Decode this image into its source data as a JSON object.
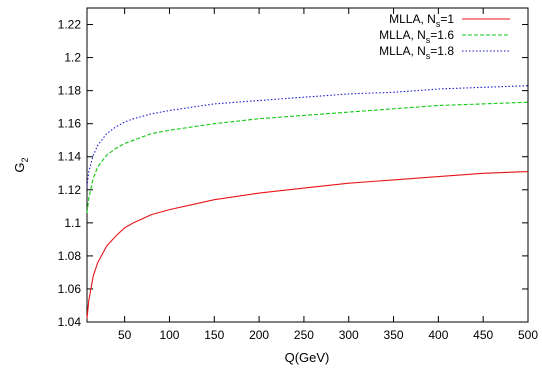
{
  "chart_data": {
    "type": "line",
    "xlabel": "Q(GeV)",
    "ylabel": "G",
    "ylabel_subscript": "2",
    "xlim": [
      8,
      500
    ],
    "ylim": [
      1.04,
      1.23
    ],
    "xticks": [
      50,
      100,
      150,
      200,
      250,
      300,
      350,
      400,
      450,
      500
    ],
    "yticks": [
      1.04,
      1.06,
      1.08,
      1.1,
      1.12,
      1.14,
      1.16,
      1.18,
      1.2,
      1.22
    ],
    "ytick_labels": [
      "1.04",
      "1.06",
      "1.08",
      "1.1",
      "1.12",
      "1.14",
      "1.16",
      "1.18",
      "1.2",
      "1.22"
    ],
    "grid": false,
    "legend_position": "top-right",
    "series": [
      {
        "name": "MLLA, N",
        "name_subscript": "s",
        "name_suffix": "=1",
        "color": "#e8161a",
        "dash": "solid",
        "x": [
          8,
          10,
          15,
          20,
          30,
          40,
          50,
          60,
          80,
          100,
          125,
          150,
          200,
          250,
          300,
          350,
          400,
          450,
          500
        ],
        "y": [
          1.042,
          1.053,
          1.068,
          1.076,
          1.086,
          1.092,
          1.097,
          1.1,
          1.105,
          1.108,
          1.111,
          1.114,
          1.118,
          1.121,
          1.124,
          1.126,
          1.128,
          1.13,
          1.131
        ]
      },
      {
        "name": "MLLA, N",
        "name_subscript": "s",
        "name_suffix": "=1.6",
        "color": "#12c812",
        "dash": "dashed",
        "x": [
          8,
          10,
          15,
          20,
          30,
          40,
          50,
          60,
          80,
          100,
          125,
          150,
          200,
          250,
          300,
          350,
          400,
          450,
          500
        ],
        "y": [
          1.106,
          1.115,
          1.127,
          1.134,
          1.141,
          1.145,
          1.148,
          1.15,
          1.154,
          1.156,
          1.158,
          1.16,
          1.163,
          1.165,
          1.167,
          1.169,
          1.171,
          1.172,
          1.173
        ]
      },
      {
        "name": "MLLA, N",
        "name_subscript": "s",
        "name_suffix": "=1.8",
        "color": "#1a1ad0",
        "dash": "dotted",
        "x": [
          8,
          10,
          15,
          20,
          30,
          40,
          50,
          60,
          80,
          100,
          125,
          150,
          200,
          250,
          300,
          350,
          400,
          450,
          500
        ],
        "y": [
          1.122,
          1.131,
          1.141,
          1.147,
          1.154,
          1.158,
          1.161,
          1.163,
          1.166,
          1.168,
          1.17,
          1.172,
          1.174,
          1.176,
          1.178,
          1.179,
          1.181,
          1.182,
          1.183
        ]
      }
    ]
  }
}
